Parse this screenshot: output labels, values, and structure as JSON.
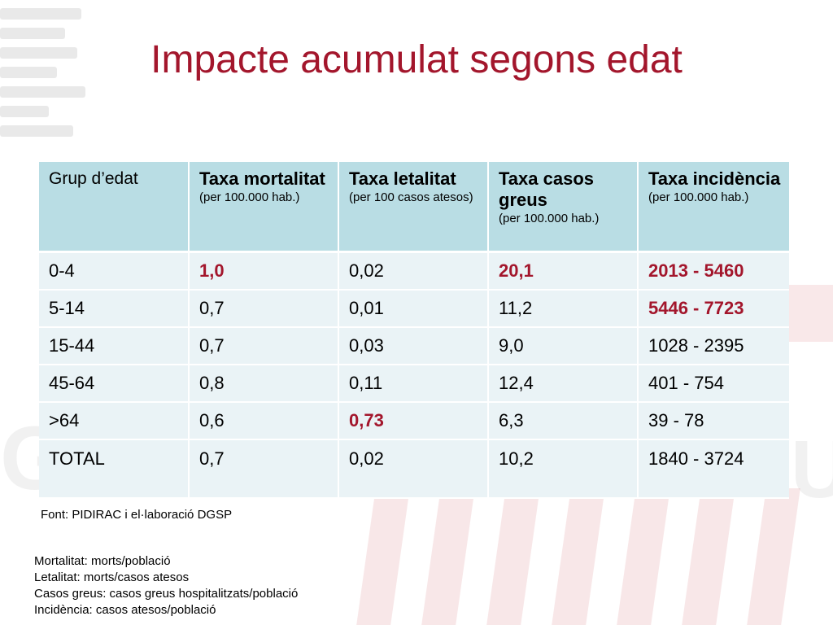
{
  "title": "Impacte acumulat segons edat",
  "table": {
    "headers": [
      {
        "title": "Grup d’edat",
        "unit": ""
      },
      {
        "title": "Taxa mortalitat",
        "unit": "(per 100.000 hab.)"
      },
      {
        "title": "Taxa letalitat",
        "unit": "(per 100 casos atesos)"
      },
      {
        "title": "Taxa casos greus",
        "unit": "(per 100.000 hab.)"
      },
      {
        "title": "Taxa incidència",
        "unit": "(per 100.000 hab.)"
      }
    ],
    "rows": [
      [
        "0-4",
        "1,0",
        "0,02",
        "20,1",
        "2013 - 5460"
      ],
      [
        "5-14",
        "0,7",
        "0,01",
        "11,2",
        "5446 - 7723"
      ],
      [
        "15-44",
        "0,7",
        "0,03",
        "9,0",
        "1028 - 2395"
      ],
      [
        "45-64",
        "0,8",
        "0,11",
        "12,4",
        "401 - 754"
      ],
      [
        ">64",
        "0,6",
        "0,73",
        "6,3",
        "39 - 78"
      ],
      [
        "TOTAL",
        "0,7",
        "0,02",
        "10,2",
        "1840 - 3724"
      ]
    ],
    "highlight_color": "#a3162c",
    "header_color": "#b9dde4",
    "row_color": "#eaf3f6"
  },
  "source": "Font: PIDIRAC i el·laboració DGSP",
  "legend": [
    "Mortalitat: morts/població",
    "Letalitat: morts/casos atesos",
    "Casos greus: casos greus hospitalitzats/població",
    "Incidència: casos atesos/població"
  ]
}
